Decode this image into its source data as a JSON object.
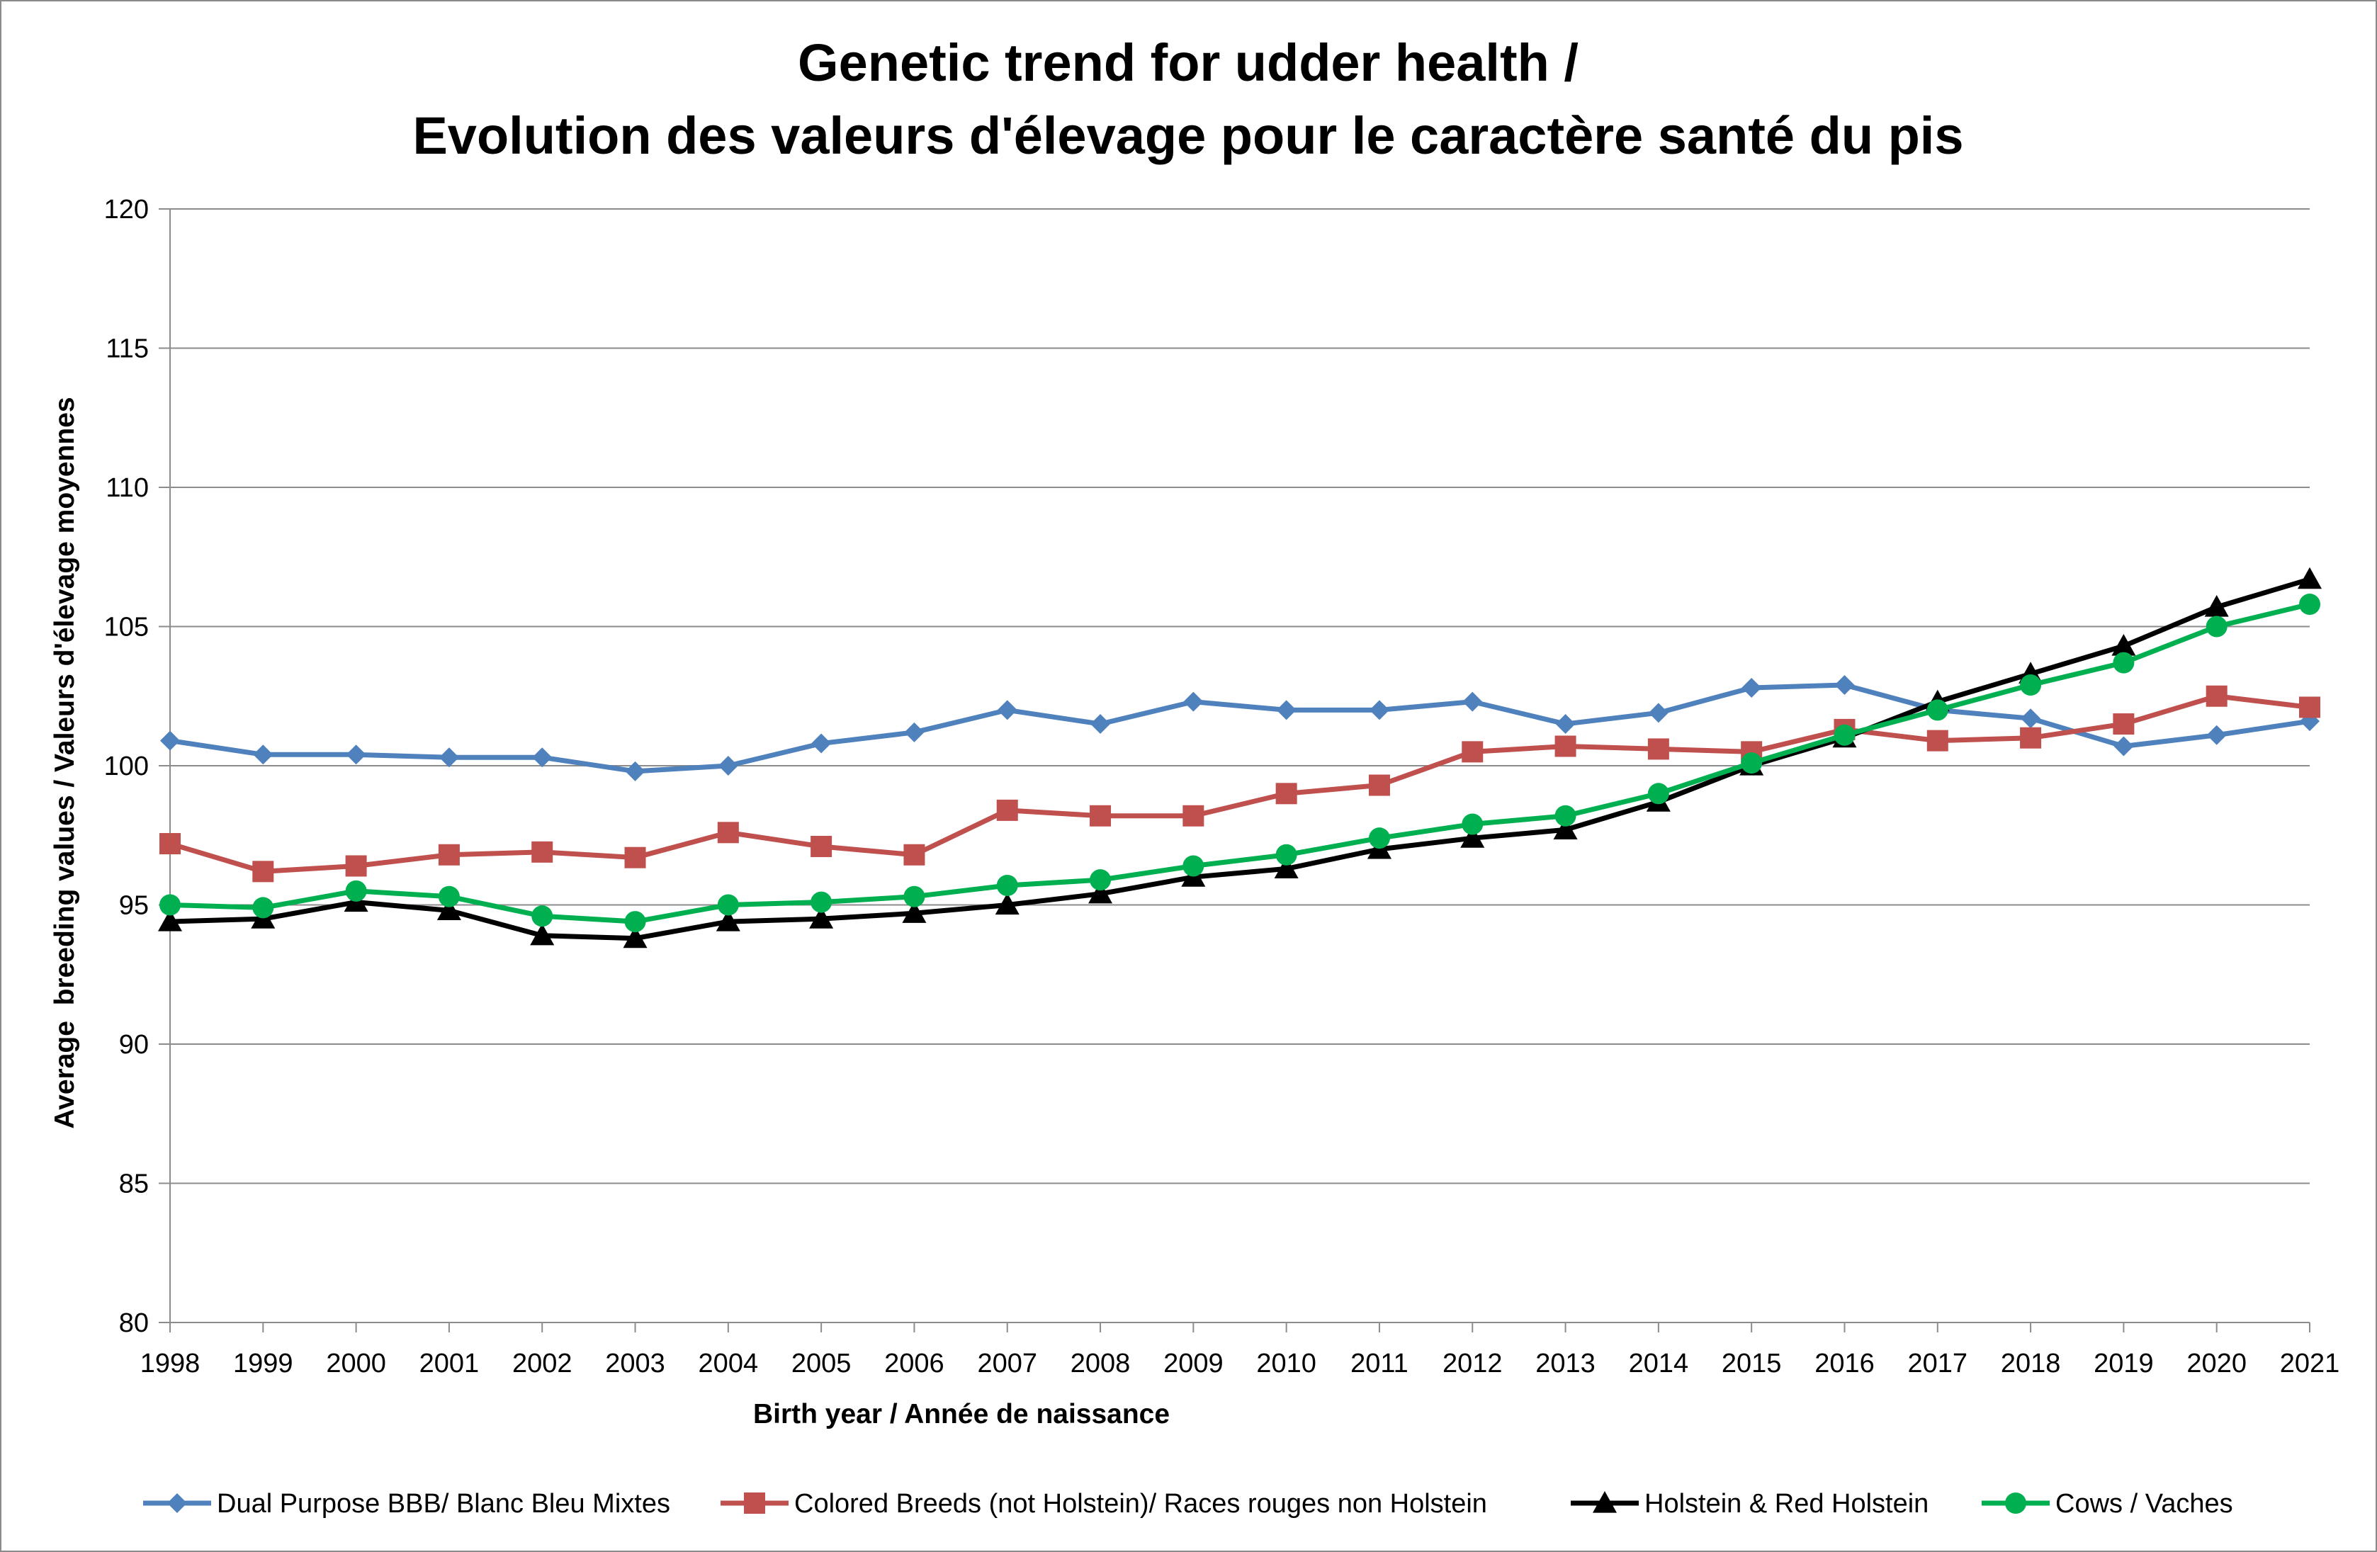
{
  "chart_data": {
    "type": "line",
    "title": [
      "Genetic trend for udder health /",
      "Evolution des valeurs d'élevage pour le caractère santé du pis"
    ],
    "xlabel": "Birth year / Année de naissance",
    "ylabel": "Average  breeding values / Valeurs d'élevage moyennes",
    "ylim": [
      80,
      120
    ],
    "ytick_step": 5,
    "grid": true,
    "legend_position": "bottom",
    "x": [
      1998,
      1999,
      2000,
      2001,
      2002,
      2003,
      2004,
      2005,
      2006,
      2007,
      2008,
      2009,
      2010,
      2011,
      2012,
      2013,
      2014,
      2015,
      2016,
      2017,
      2018,
      2019,
      2020,
      2021
    ],
    "series": [
      {
        "name": "Dual Purpose BBB/ Blanc Bleu Mixtes",
        "color": "#4f81bd",
        "marker": "diamond",
        "values": [
          100.9,
          100.4,
          100.4,
          100.3,
          100.3,
          99.8,
          100.0,
          100.8,
          101.2,
          102.0,
          101.5,
          102.3,
          102.0,
          102.0,
          102.3,
          101.5,
          101.9,
          102.8,
          102.9,
          102.0,
          101.7,
          100.7,
          101.1,
          101.6
        ]
      },
      {
        "name": "Colored Breeds (not Holstein)/ Races rouges non Holstein",
        "color": "#c0504d",
        "marker": "square",
        "values": [
          97.2,
          96.2,
          96.4,
          96.8,
          96.9,
          96.7,
          97.6,
          97.1,
          96.8,
          98.4,
          98.2,
          98.2,
          99.0,
          99.3,
          100.5,
          100.7,
          100.6,
          100.5,
          101.3,
          100.9,
          101.0,
          101.5,
          102.5,
          102.1
        ]
      },
      {
        "name": "Holstein & Red Holstein",
        "color": "#000000",
        "marker": "triangle",
        "values": [
          94.4,
          94.5,
          95.1,
          94.8,
          93.9,
          93.8,
          94.4,
          94.5,
          94.7,
          95.0,
          95.4,
          96.0,
          96.3,
          97.0,
          97.4,
          97.7,
          98.7,
          100.0,
          101.0,
          102.3,
          103.3,
          104.3,
          105.7,
          106.7
        ]
      },
      {
        "name": "Cows / Vaches",
        "color": "#00b050",
        "marker": "circle",
        "values": [
          95.0,
          94.9,
          95.5,
          95.3,
          94.6,
          94.4,
          95.0,
          95.1,
          95.3,
          95.7,
          95.9,
          96.4,
          96.8,
          97.4,
          97.9,
          98.2,
          99.0,
          100.1,
          101.1,
          102.0,
          102.9,
          103.7,
          105.0,
          105.8
        ]
      }
    ]
  }
}
